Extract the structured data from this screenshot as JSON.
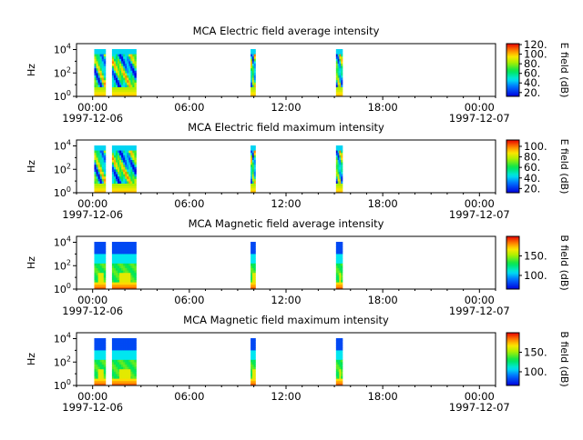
{
  "figure": {
    "x_ticks": [
      "00:00",
      "06:00",
      "12:00",
      "18:00",
      "00:00"
    ],
    "x_tick_hours": [
      0,
      6,
      12,
      18,
      24
    ],
    "date_start": "1997-12-06",
    "date_end": "1997-12-07"
  },
  "chart_data": [
    {
      "type": "heatmap",
      "title": "MCA  Electric field average intensity",
      "ylabel": "Hz",
      "yscale": "log",
      "ylim": [
        1,
        32000
      ],
      "y_ticks": [
        "10^0",
        "10^2",
        "10^4"
      ],
      "x_range_hours": [
        -1,
        25
      ],
      "colorbar": {
        "label": "E field (dB)",
        "range": [
          12,
          122
        ],
        "ticks": [
          "20.",
          "40.",
          "60.",
          "80.",
          "100.",
          "120."
        ]
      },
      "segments": [
        {
          "start_h": 0.1,
          "end_h": 0.8
        },
        {
          "start_h": 1.2,
          "end_h": 2.7
        },
        {
          "start_h": 9.8,
          "end_h": 10.1
        },
        {
          "start_h": 15.1,
          "end_h": 15.5
        }
      ]
    },
    {
      "type": "heatmap",
      "title": "MCA  Electric field maximum intensity",
      "ylabel": "Hz",
      "yscale": "log",
      "ylim": [
        1,
        32000
      ],
      "y_ticks": [
        "10^0",
        "10^2",
        "10^4"
      ],
      "x_range_hours": [
        -1,
        25
      ],
      "colorbar": {
        "label": "E field (dB)",
        "range": [
          12,
          112
        ],
        "ticks": [
          "20.",
          "40.",
          "60.",
          "80.",
          "100."
        ]
      },
      "segments": [
        {
          "start_h": 0.1,
          "end_h": 0.8
        },
        {
          "start_h": 1.2,
          "end_h": 2.7
        },
        {
          "start_h": 9.8,
          "end_h": 10.1
        },
        {
          "start_h": 15.1,
          "end_h": 15.5
        }
      ]
    },
    {
      "type": "heatmap",
      "title": "MCA  Magnetic field average intensity",
      "ylabel": "Hz",
      "yscale": "log",
      "ylim": [
        1,
        32000
      ],
      "y_ticks": [
        "10^0",
        "10^2",
        "10^4"
      ],
      "x_range_hours": [
        -1,
        25
      ],
      "colorbar": {
        "label": "B field (dB)",
        "range": [
          65,
          200
        ],
        "ticks": [
          "100.",
          "150."
        ]
      },
      "segments": [
        {
          "start_h": 0.1,
          "end_h": 0.8
        },
        {
          "start_h": 1.2,
          "end_h": 2.7
        },
        {
          "start_h": 9.8,
          "end_h": 10.1
        },
        {
          "start_h": 15.1,
          "end_h": 15.5
        }
      ]
    },
    {
      "type": "heatmap",
      "title": "MCA  Magnetic field maximum intensity",
      "ylabel": "Hz",
      "yscale": "log",
      "ylim": [
        1,
        32000
      ],
      "y_ticks": [
        "10^0",
        "10^2",
        "10^4"
      ],
      "x_range_hours": [
        -1,
        25
      ],
      "colorbar": {
        "label": "B field (dB)",
        "range": [
          65,
          200
        ],
        "ticks": [
          "100.",
          "150."
        ]
      },
      "segments": [
        {
          "start_h": 0.1,
          "end_h": 0.8
        },
        {
          "start_h": 1.2,
          "end_h": 2.7
        },
        {
          "start_h": 9.8,
          "end_h": 10.1
        },
        {
          "start_h": 15.1,
          "end_h": 15.5
        }
      ]
    }
  ]
}
